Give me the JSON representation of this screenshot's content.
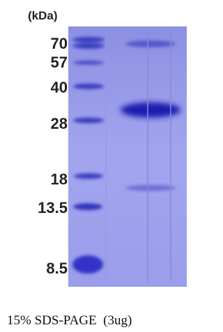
{
  "unit_label": "(kDa)",
  "markers": [
    "70",
    "57",
    "40",
    "28",
    "18",
    "13.5",
    "8.5"
  ],
  "caption": "15% SDS-PAGE  (3ug)"
}
